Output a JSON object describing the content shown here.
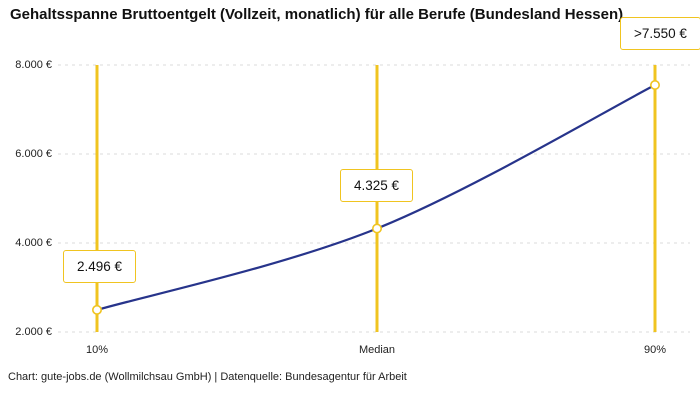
{
  "page": {
    "title": "Gehaltsspanne Bruttoentgelt (Vollzeit, monatlich) für alle Berufe (Bundesland Hessen)",
    "footer": "Chart: gute-jobs.de (Wollmilchsau GmbH) | Datenquelle: Bundesagentur für Arbeit"
  },
  "chart_data": {
    "type": "line",
    "title": "Gehaltsspanne Bruttoentgelt (Vollzeit, monatlich) für alle Berufe (Bundesland Hessen)",
    "categories": [
      "10%",
      "Median",
      "90%"
    ],
    "values": [
      2496,
      4325,
      7550
    ],
    "point_labels": [
      "2.496 €",
      "4.325 €",
      ">7.550 €"
    ],
    "ylim": [
      2000,
      8000
    ],
    "yticks": [
      2000,
      4000,
      6000,
      8000
    ],
    "ytick_labels": [
      "2.000 €",
      "4.000 €",
      "6.000 €",
      "8.000 €"
    ],
    "xlabel": "",
    "ylabel": "",
    "grid": "horizontal-dashed",
    "legend": "none",
    "colors": {
      "line": "#27348b",
      "accent": "#f0c420",
      "grid": "#dbdbdb",
      "marker_fill": "#ffffff",
      "text": "#1a1a1a",
      "background": "#ffffff"
    }
  }
}
